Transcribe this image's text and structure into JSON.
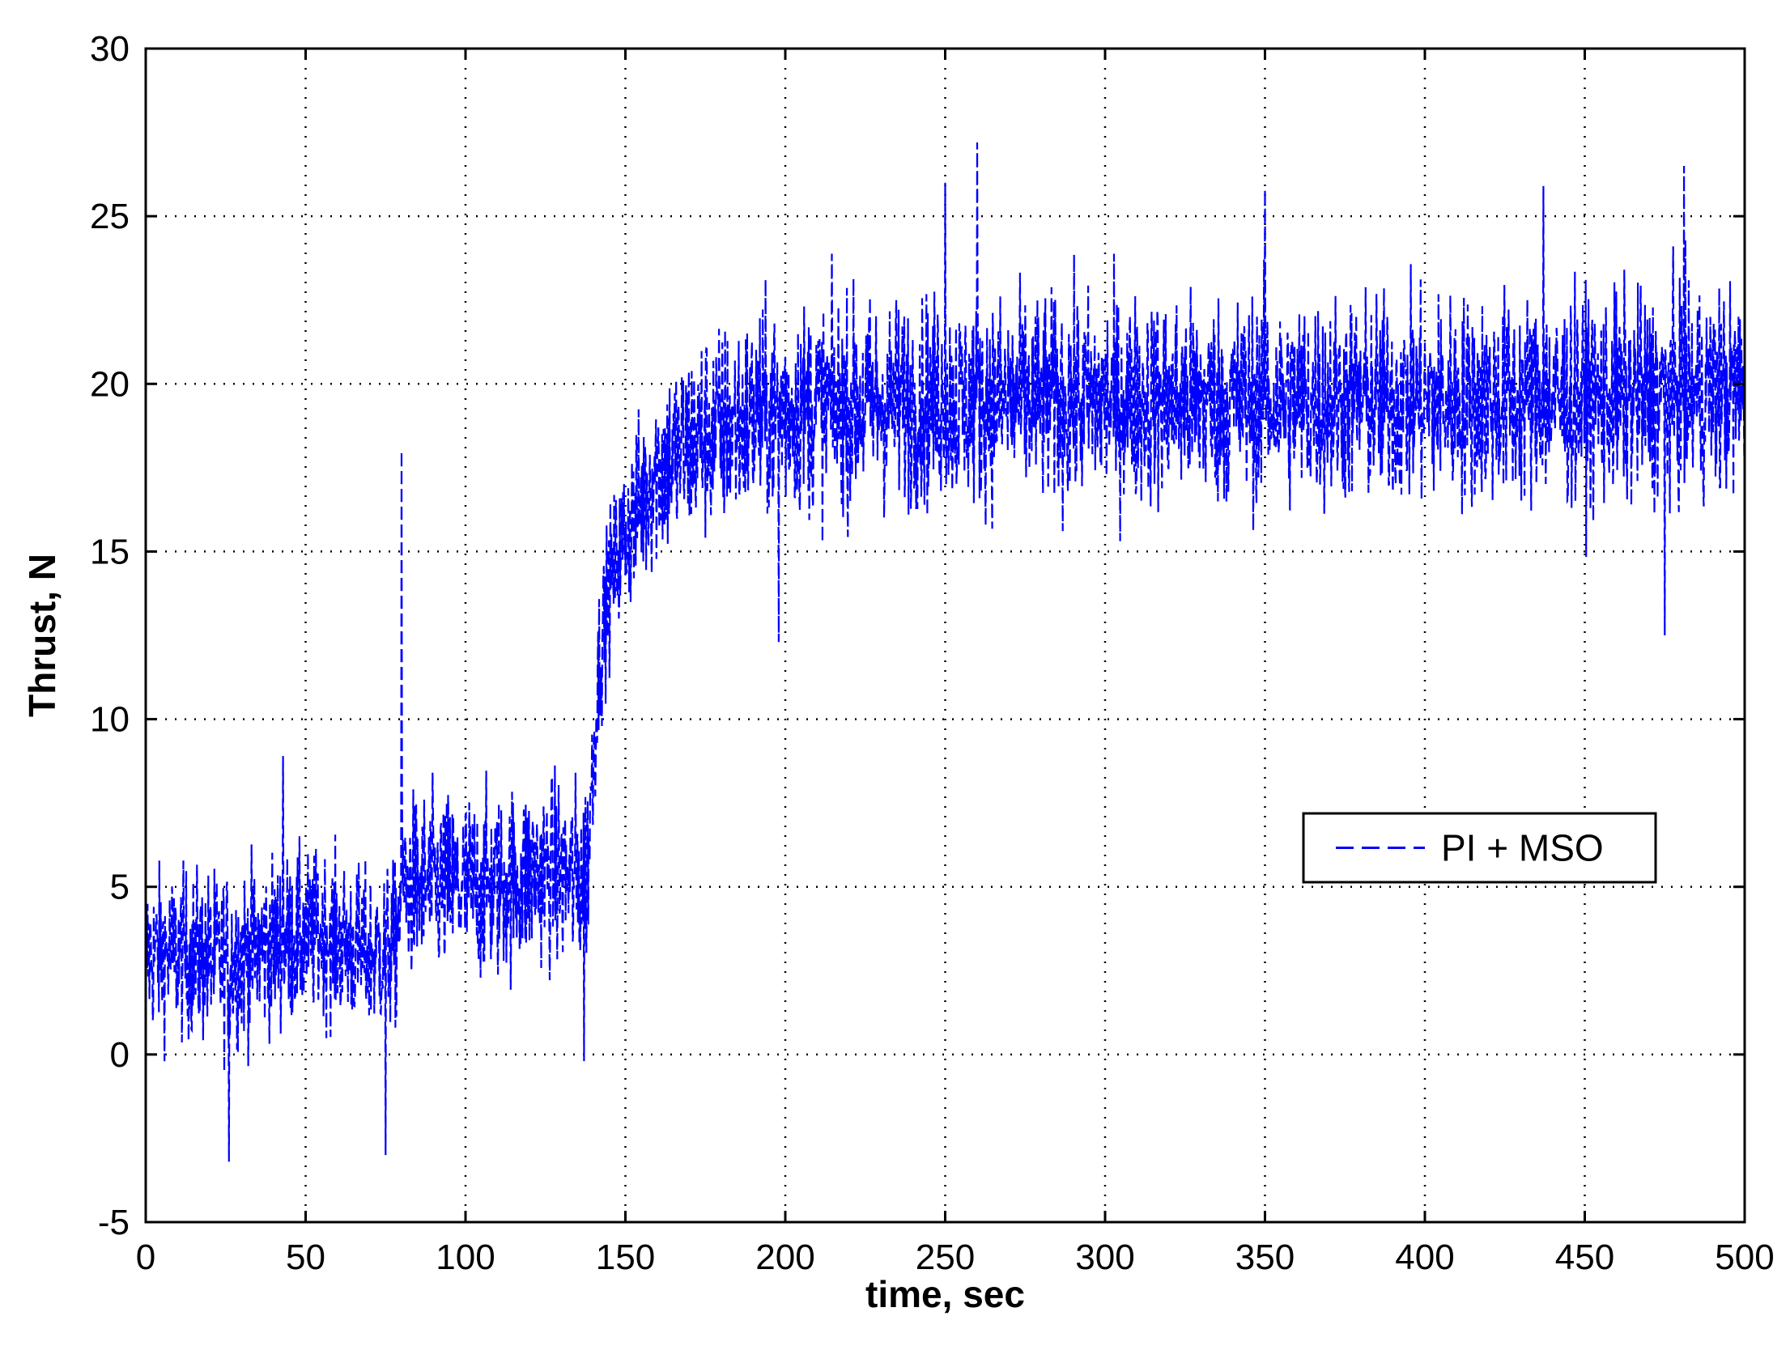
{
  "chart_data": {
    "type": "line",
    "title": "",
    "xlabel": "time, sec",
    "ylabel": "Thrust, N",
    "xlim": [
      0,
      500
    ],
    "ylim": [
      -5,
      30
    ],
    "xticks": [
      0,
      50,
      100,
      150,
      200,
      250,
      300,
      350,
      400,
      450,
      500
    ],
    "yticks": [
      -5,
      0,
      5,
      10,
      15,
      20,
      25,
      30
    ],
    "xtick_labels": [
      "0",
      "50",
      "100",
      "150",
      "200",
      "250",
      "300",
      "350",
      "400",
      "450",
      "500"
    ],
    "ytick_labels": [
      "-5",
      "0",
      "5",
      "10",
      "15",
      "20",
      "25",
      "30"
    ],
    "grid": true,
    "legend_position": "right-middle",
    "series": [
      {
        "name": "PI + MSO",
        "color": "#0000ff",
        "line_style": "dashed",
        "profile_x": [
          0,
          10,
          25,
          40,
          55,
          70,
          78,
          80,
          95,
          110,
          125,
          135,
          138,
          140,
          142,
          145,
          150,
          160,
          175,
          200,
          250,
          300,
          350,
          400,
          450,
          500
        ],
        "profile_mean": [
          3,
          3,
          2.8,
          3.3,
          3.6,
          3,
          3.2,
          5,
          5,
          5,
          5.5,
          5.2,
          5.5,
          9,
          12,
          14,
          15.5,
          17.5,
          18.5,
          19.3,
          19.5,
          19.5,
          19.5,
          19.5,
          19.5,
          19.8
        ],
        "profile_spread": [
          2.2,
          2.2,
          2.4,
          2.3,
          2.2,
          2.2,
          2.2,
          2.5,
          2.5,
          2.5,
          2.5,
          2.6,
          2.6,
          2,
          2,
          2,
          2.2,
          2.6,
          2.8,
          2.8,
          2.8,
          2.8,
          2.8,
          2.8,
          2.8,
          2.8
        ],
        "spikes": [
          {
            "x": 80,
            "y": 18
          },
          {
            "x": 75,
            "y": -3
          },
          {
            "x": 26,
            "y": -3.2
          },
          {
            "x": 43,
            "y": 8.9
          },
          {
            "x": 137,
            "y": -0.2
          },
          {
            "x": 260,
            "y": 27.2
          },
          {
            "x": 250,
            "y": 26
          },
          {
            "x": 481,
            "y": 26.5
          },
          {
            "x": 475,
            "y": 12.5
          },
          {
            "x": 198,
            "y": 12.3
          },
          {
            "x": 437,
            "y": 25.9
          },
          {
            "x": 350,
            "y": 25.8
          }
        ]
      }
    ]
  }
}
